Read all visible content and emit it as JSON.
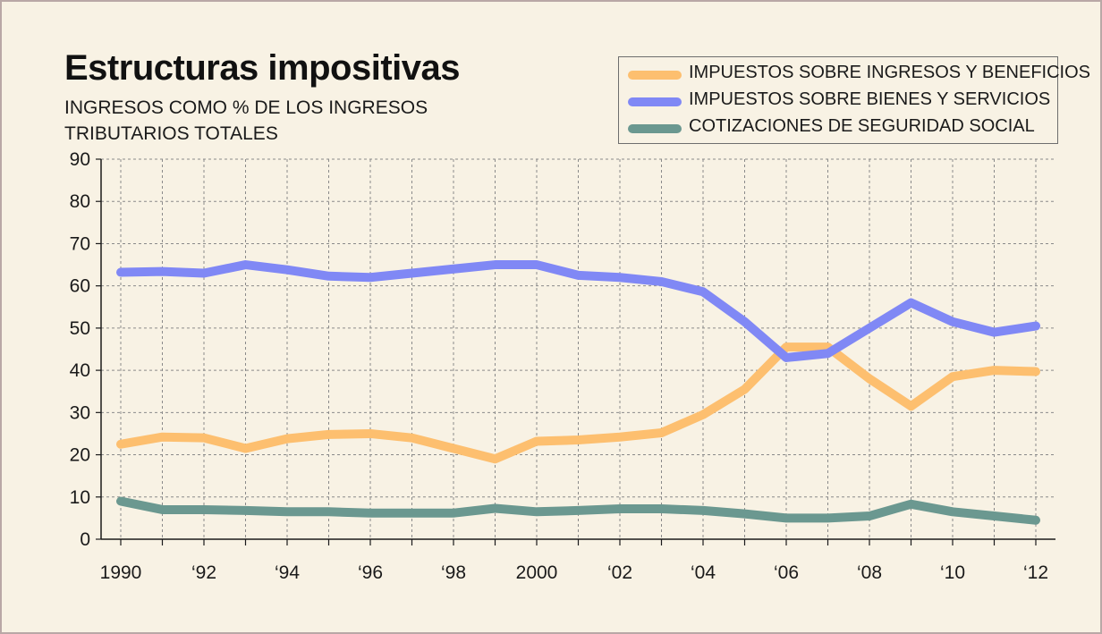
{
  "title": "Estructuras impositivas",
  "subtitle_line1": "INGRESOS COMO % DE LOS INGRESOS",
  "subtitle_line2": "TRIBUTARIOS TOTALES",
  "chart_data": {
    "type": "line",
    "title": "Estructuras impositivas",
    "subtitle": "INGRESOS COMO % DE LOS INGRESOS TRIBUTARIOS TOTALES",
    "xlabel": "",
    "ylabel": "",
    "ylim": [
      0,
      90
    ],
    "y_ticks": [
      0,
      10,
      20,
      30,
      40,
      50,
      60,
      70,
      80,
      90
    ],
    "x_tick_labels": [
      "1990",
      "‘92",
      "‘94",
      "‘96",
      "‘98",
      "2000",
      "‘02",
      "‘04",
      "‘06",
      "‘08",
      "‘10",
      "‘12"
    ],
    "x": [
      1990,
      1991,
      1992,
      1993,
      1994,
      1995,
      1996,
      1997,
      1998,
      1999,
      2000,
      2001,
      2002,
      2003,
      2004,
      2005,
      2006,
      2007,
      2008,
      2009,
      2010,
      2011,
      2012
    ],
    "grid": true,
    "legend_position": "top-right",
    "series": [
      {
        "name": "IMPUESTOS SOBRE INGRESOS Y BENEFICIOS",
        "color": "#fdbf6f",
        "values": [
          22.5,
          24.2,
          24.0,
          21.5,
          23.8,
          24.8,
          25.0,
          24.0,
          21.5,
          19.0,
          23.2,
          23.5,
          24.2,
          25.2,
          29.5,
          35.5,
          45.5,
          45.5,
          38.0,
          31.5,
          38.5,
          40.0,
          39.7
        ]
      },
      {
        "name": "IMPUESTOS SOBRE BIENES Y SERVICIOS",
        "color": "#8088f5",
        "values": [
          63.2,
          63.4,
          63.0,
          65.0,
          63.8,
          62.3,
          62.0,
          63.0,
          64.0,
          65.0,
          65.0,
          62.5,
          62.0,
          61.0,
          58.6,
          51.5,
          43.0,
          44.0,
          50.0,
          56.0,
          51.5,
          49.0,
          50.5
        ]
      },
      {
        "name": "COTIZACIONES DE SEGURIDAD SOCIAL",
        "color": "#6b9890",
        "values": [
          9.0,
          7.0,
          7.0,
          6.8,
          6.5,
          6.5,
          6.2,
          6.2,
          6.2,
          7.3,
          6.5,
          6.8,
          7.2,
          7.2,
          6.8,
          6.0,
          5.0,
          5.0,
          5.5,
          8.3,
          6.5,
          5.5,
          4.5
        ]
      }
    ]
  }
}
